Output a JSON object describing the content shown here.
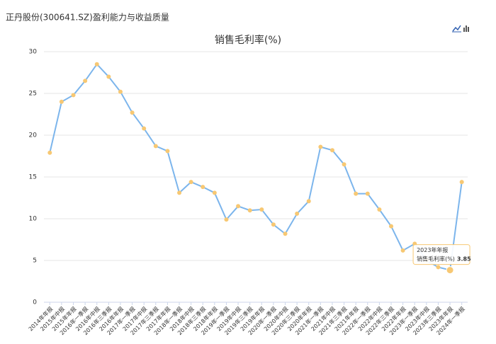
{
  "header": "正丹股份(300641.SZ)盈利能力与收益质量",
  "chart_data": {
    "type": "line",
    "title": "销售毛利率(%)",
    "categories": [
      "2014年年报",
      "2015年中报",
      "2015年年报",
      "2016年一季报",
      "2016年中报",
      "2016年三季报",
      "2016年年报",
      "2017年一季报",
      "2017年中报",
      "2017年三季报",
      "2017年年报",
      "2018年一季报",
      "2018年中报",
      "2018年三季报",
      "2018年年报",
      "2019年一季报",
      "2019年中报",
      "2019年三季报",
      "2019年年报",
      "2020年一季报",
      "2020年中报",
      "2020年三季报",
      "2020年年报",
      "2021年一季报",
      "2021年中报",
      "2021年三季报",
      "2021年年报",
      "2022年一季报",
      "2022年中报",
      "2022年三季报",
      "2022年年报",
      "2023年一季报",
      "2023年中报",
      "2023年三季报",
      "2023年年报",
      "2024年一季报"
    ],
    "series": [
      {
        "name": "销售毛利率(%)",
        "color": "#7cb5ec",
        "marker_color": "#f7c873",
        "values": [
          17.9,
          24.0,
          24.8,
          26.5,
          28.5,
          27.0,
          25.2,
          22.7,
          20.8,
          18.7,
          18.1,
          13.1,
          14.4,
          13.8,
          13.1,
          9.9,
          11.5,
          11.0,
          11.1,
          9.3,
          8.2,
          10.6,
          12.1,
          18.6,
          18.2,
          16.5,
          13.0,
          13.0,
          11.1,
          9.1,
          6.2,
          7.0,
          5.0,
          4.2,
          3.85,
          14.4
        ]
      }
    ],
    "ylim": [
      0,
      30
    ],
    "yticks": [
      0,
      5,
      10,
      15,
      20,
      25,
      30
    ],
    "grid": true,
    "tooltip_index": 34
  }
}
